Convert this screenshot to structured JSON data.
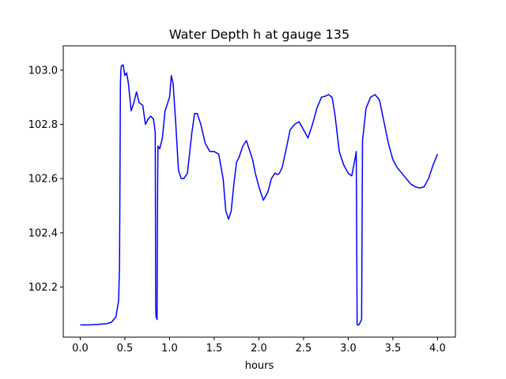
{
  "chart_data": {
    "type": "line",
    "title": "Water Depth h at gauge 135",
    "xlabel": "hours",
    "ylabel": "",
    "xlim": [
      -0.19,
      4.2
    ],
    "ylim": [
      102.015,
      103.09
    ],
    "xticks": [
      0.0,
      0.5,
      1.0,
      1.5,
      2.0,
      2.5,
      3.0,
      3.5,
      4.0
    ],
    "xtick_labels": [
      "0.0",
      "0.5",
      "1.0",
      "1.5",
      "2.0",
      "2.5",
      "3.0",
      "3.5",
      "4.0"
    ],
    "yticks": [
      102.2,
      102.4,
      102.6,
      102.8,
      103.0
    ],
    "ytick_labels": [
      "102.2",
      "102.4",
      "102.6",
      "102.8",
      "103.0"
    ],
    "grid": false,
    "legend": "none",
    "series": [
      {
        "color": "#0000ff",
        "x": [
          0.0,
          0.1,
          0.2,
          0.3,
          0.35,
          0.4,
          0.43,
          0.44,
          0.445,
          0.45,
          0.455,
          0.46,
          0.48,
          0.5,
          0.52,
          0.54,
          0.57,
          0.6,
          0.63,
          0.66,
          0.7,
          0.73,
          0.76,
          0.79,
          0.82,
          0.84,
          0.845,
          0.85,
          0.86,
          0.865,
          0.87,
          0.89,
          0.92,
          0.95,
          1.0,
          1.02,
          1.04,
          1.07,
          1.1,
          1.13,
          1.16,
          1.2,
          1.25,
          1.28,
          1.31,
          1.35,
          1.4,
          1.45,
          1.5,
          1.55,
          1.6,
          1.63,
          1.66,
          1.69,
          1.72,
          1.75,
          1.78,
          1.82,
          1.86,
          1.9,
          1.93,
          1.96,
          2.0,
          2.05,
          2.1,
          2.14,
          2.18,
          2.21,
          2.23,
          2.26,
          2.3,
          2.35,
          2.4,
          2.45,
          2.5,
          2.55,
          2.6,
          2.65,
          2.7,
          2.75,
          2.78,
          2.82,
          2.85,
          2.9,
          2.95,
          3.0,
          3.04,
          3.08,
          3.09,
          3.1,
          3.12,
          3.15,
          3.16,
          3.2,
          3.25,
          3.3,
          3.35,
          3.4,
          3.45,
          3.5,
          3.55,
          3.6,
          3.65,
          3.7,
          3.75,
          3.8,
          3.85,
          3.9,
          3.95,
          4.0
        ],
        "y": [
          102.06,
          102.06,
          102.062,
          102.065,
          102.07,
          102.09,
          102.15,
          102.28,
          102.6,
          102.95,
          103.0,
          103.015,
          103.02,
          102.98,
          102.99,
          102.95,
          102.85,
          102.88,
          102.92,
          102.88,
          102.87,
          102.8,
          102.82,
          102.83,
          102.82,
          102.77,
          102.12,
          102.09,
          102.08,
          102.5,
          102.72,
          102.71,
          102.75,
          102.85,
          102.9,
          102.98,
          102.95,
          102.8,
          102.63,
          102.6,
          102.6,
          102.62,
          102.77,
          102.84,
          102.84,
          102.8,
          102.73,
          102.7,
          102.7,
          102.69,
          102.6,
          102.48,
          102.45,
          102.48,
          102.58,
          102.66,
          102.68,
          102.72,
          102.74,
          102.7,
          102.67,
          102.62,
          102.57,
          102.52,
          102.55,
          102.6,
          102.62,
          102.615,
          102.62,
          102.64,
          102.7,
          102.78,
          102.8,
          102.81,
          102.78,
          102.75,
          102.8,
          102.86,
          102.9,
          102.905,
          102.91,
          102.9,
          102.84,
          102.7,
          102.65,
          102.62,
          102.61,
          102.68,
          102.7,
          102.06,
          102.06,
          102.08,
          102.74,
          102.86,
          102.9,
          102.91,
          102.89,
          102.81,
          102.73,
          102.67,
          102.64,
          102.62,
          102.6,
          102.58,
          102.57,
          102.565,
          102.57,
          102.6,
          102.65,
          102.69
        ]
      }
    ]
  }
}
